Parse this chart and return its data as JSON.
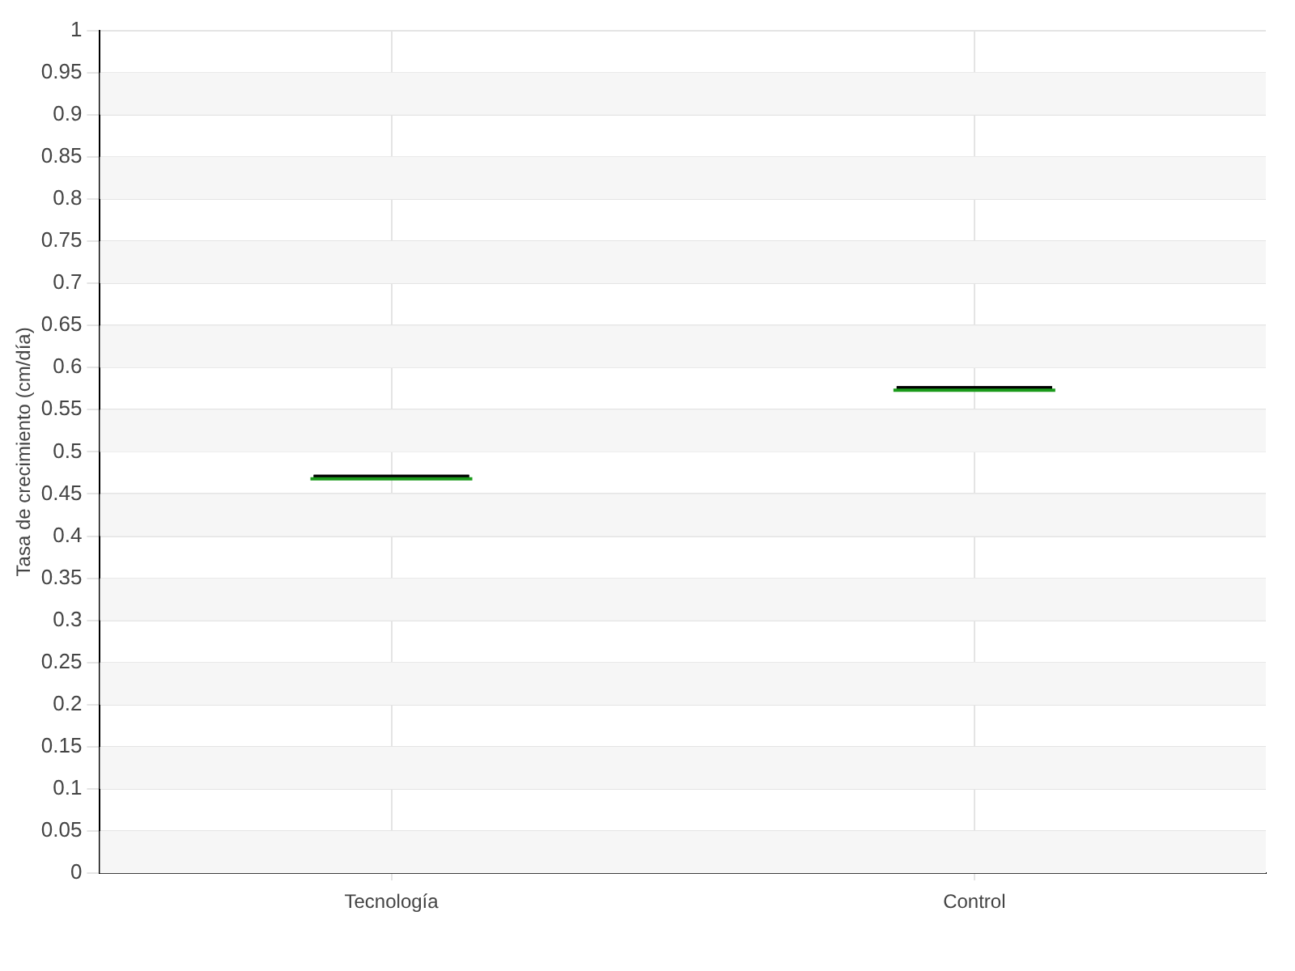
{
  "chart_data": {
    "type": "box",
    "ylabel": "Tasa de crecimiento (cm/día)",
    "categories": [
      "Tecnología",
      "Control"
    ],
    "boxes": [
      {
        "low": 0.47,
        "q1": 0.47,
        "median": 0.47,
        "q3": 0.47,
        "high": 0.47
      },
      {
        "low": 0.575,
        "q1": 0.575,
        "median": 0.575,
        "q3": 0.575,
        "high": 0.575
      }
    ],
    "ylim": [
      0,
      1
    ],
    "yticks": [
      0,
      0.05,
      0.1,
      0.15,
      0.2,
      0.25,
      0.3,
      0.35,
      0.4,
      0.45,
      0.5,
      0.55,
      0.6,
      0.65,
      0.7,
      0.75,
      0.8,
      0.85,
      0.9,
      0.95,
      1
    ],
    "grid": true,
    "legend": false
  }
}
